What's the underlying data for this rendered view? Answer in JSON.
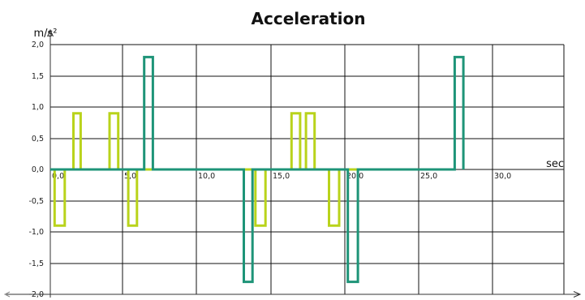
{
  "chart_data": {
    "type": "line",
    "title": "Acceleration",
    "xlabel": "sec",
    "ylabel": "m/s²",
    "xlim": [
      0,
      34
    ],
    "ylim": [
      -2.0,
      2.0
    ],
    "grid": true,
    "legend": "none",
    "x_ticks": [
      "0,0",
      "5,0",
      "10,0",
      "15,0",
      "20,0",
      "25,0",
      "30,0"
    ],
    "y_ticks": [
      "2,0",
      "1,5",
      "1,0",
      "0,5",
      "0,0",
      "-0,5",
      "-1,0",
      "-1,5",
      "-2,0"
    ],
    "colors": {
      "series_a": "#b9d31b",
      "series_b": "#1e9478",
      "grid": "#111111",
      "text": "#111111"
    },
    "series": [
      {
        "color": "#b9d31b",
        "x": [
          0,
          0.3,
          0.3,
          1.0,
          1.0,
          1.6,
          1.6,
          2.1,
          2.1,
          4.1,
          4.1,
          4.7,
          4.7,
          5.4,
          5.4,
          6.0,
          6.0,
          13.3,
          13.3,
          14.2,
          14.2,
          14.9,
          14.9,
          16.7,
          16.7,
          17.3,
          17.3,
          17.7,
          17.7,
          18.3,
          18.3,
          19.3,
          19.3,
          20.0,
          20.0,
          27.9
        ],
        "y": [
          0,
          0,
          -0.9,
          -0.9,
          0,
          0,
          0.9,
          0.9,
          0,
          0,
          0.9,
          0.9,
          0,
          0,
          -0.9,
          -0.9,
          0,
          0,
          0,
          0,
          -0.9,
          -0.9,
          0,
          0,
          0.9,
          0.9,
          0,
          0,
          0.9,
          0.9,
          0,
          0,
          -0.9,
          -0.9,
          0,
          0
        ]
      },
      {
        "color": "#1e9478",
        "x": [
          0,
          6.5,
          6.5,
          7.1,
          7.1,
          13.4,
          13.4,
          14.0,
          14.0,
          20.6,
          20.6,
          21.3,
          21.3,
          28.0,
          28.0,
          28.6,
          28.6
        ],
        "y": [
          0,
          0,
          1.8,
          1.8,
          0,
          0,
          -1.8,
          -1.8,
          0,
          0,
          -1.8,
          -1.8,
          0,
          0,
          1.8,
          1.8,
          0
        ]
      }
    ]
  }
}
